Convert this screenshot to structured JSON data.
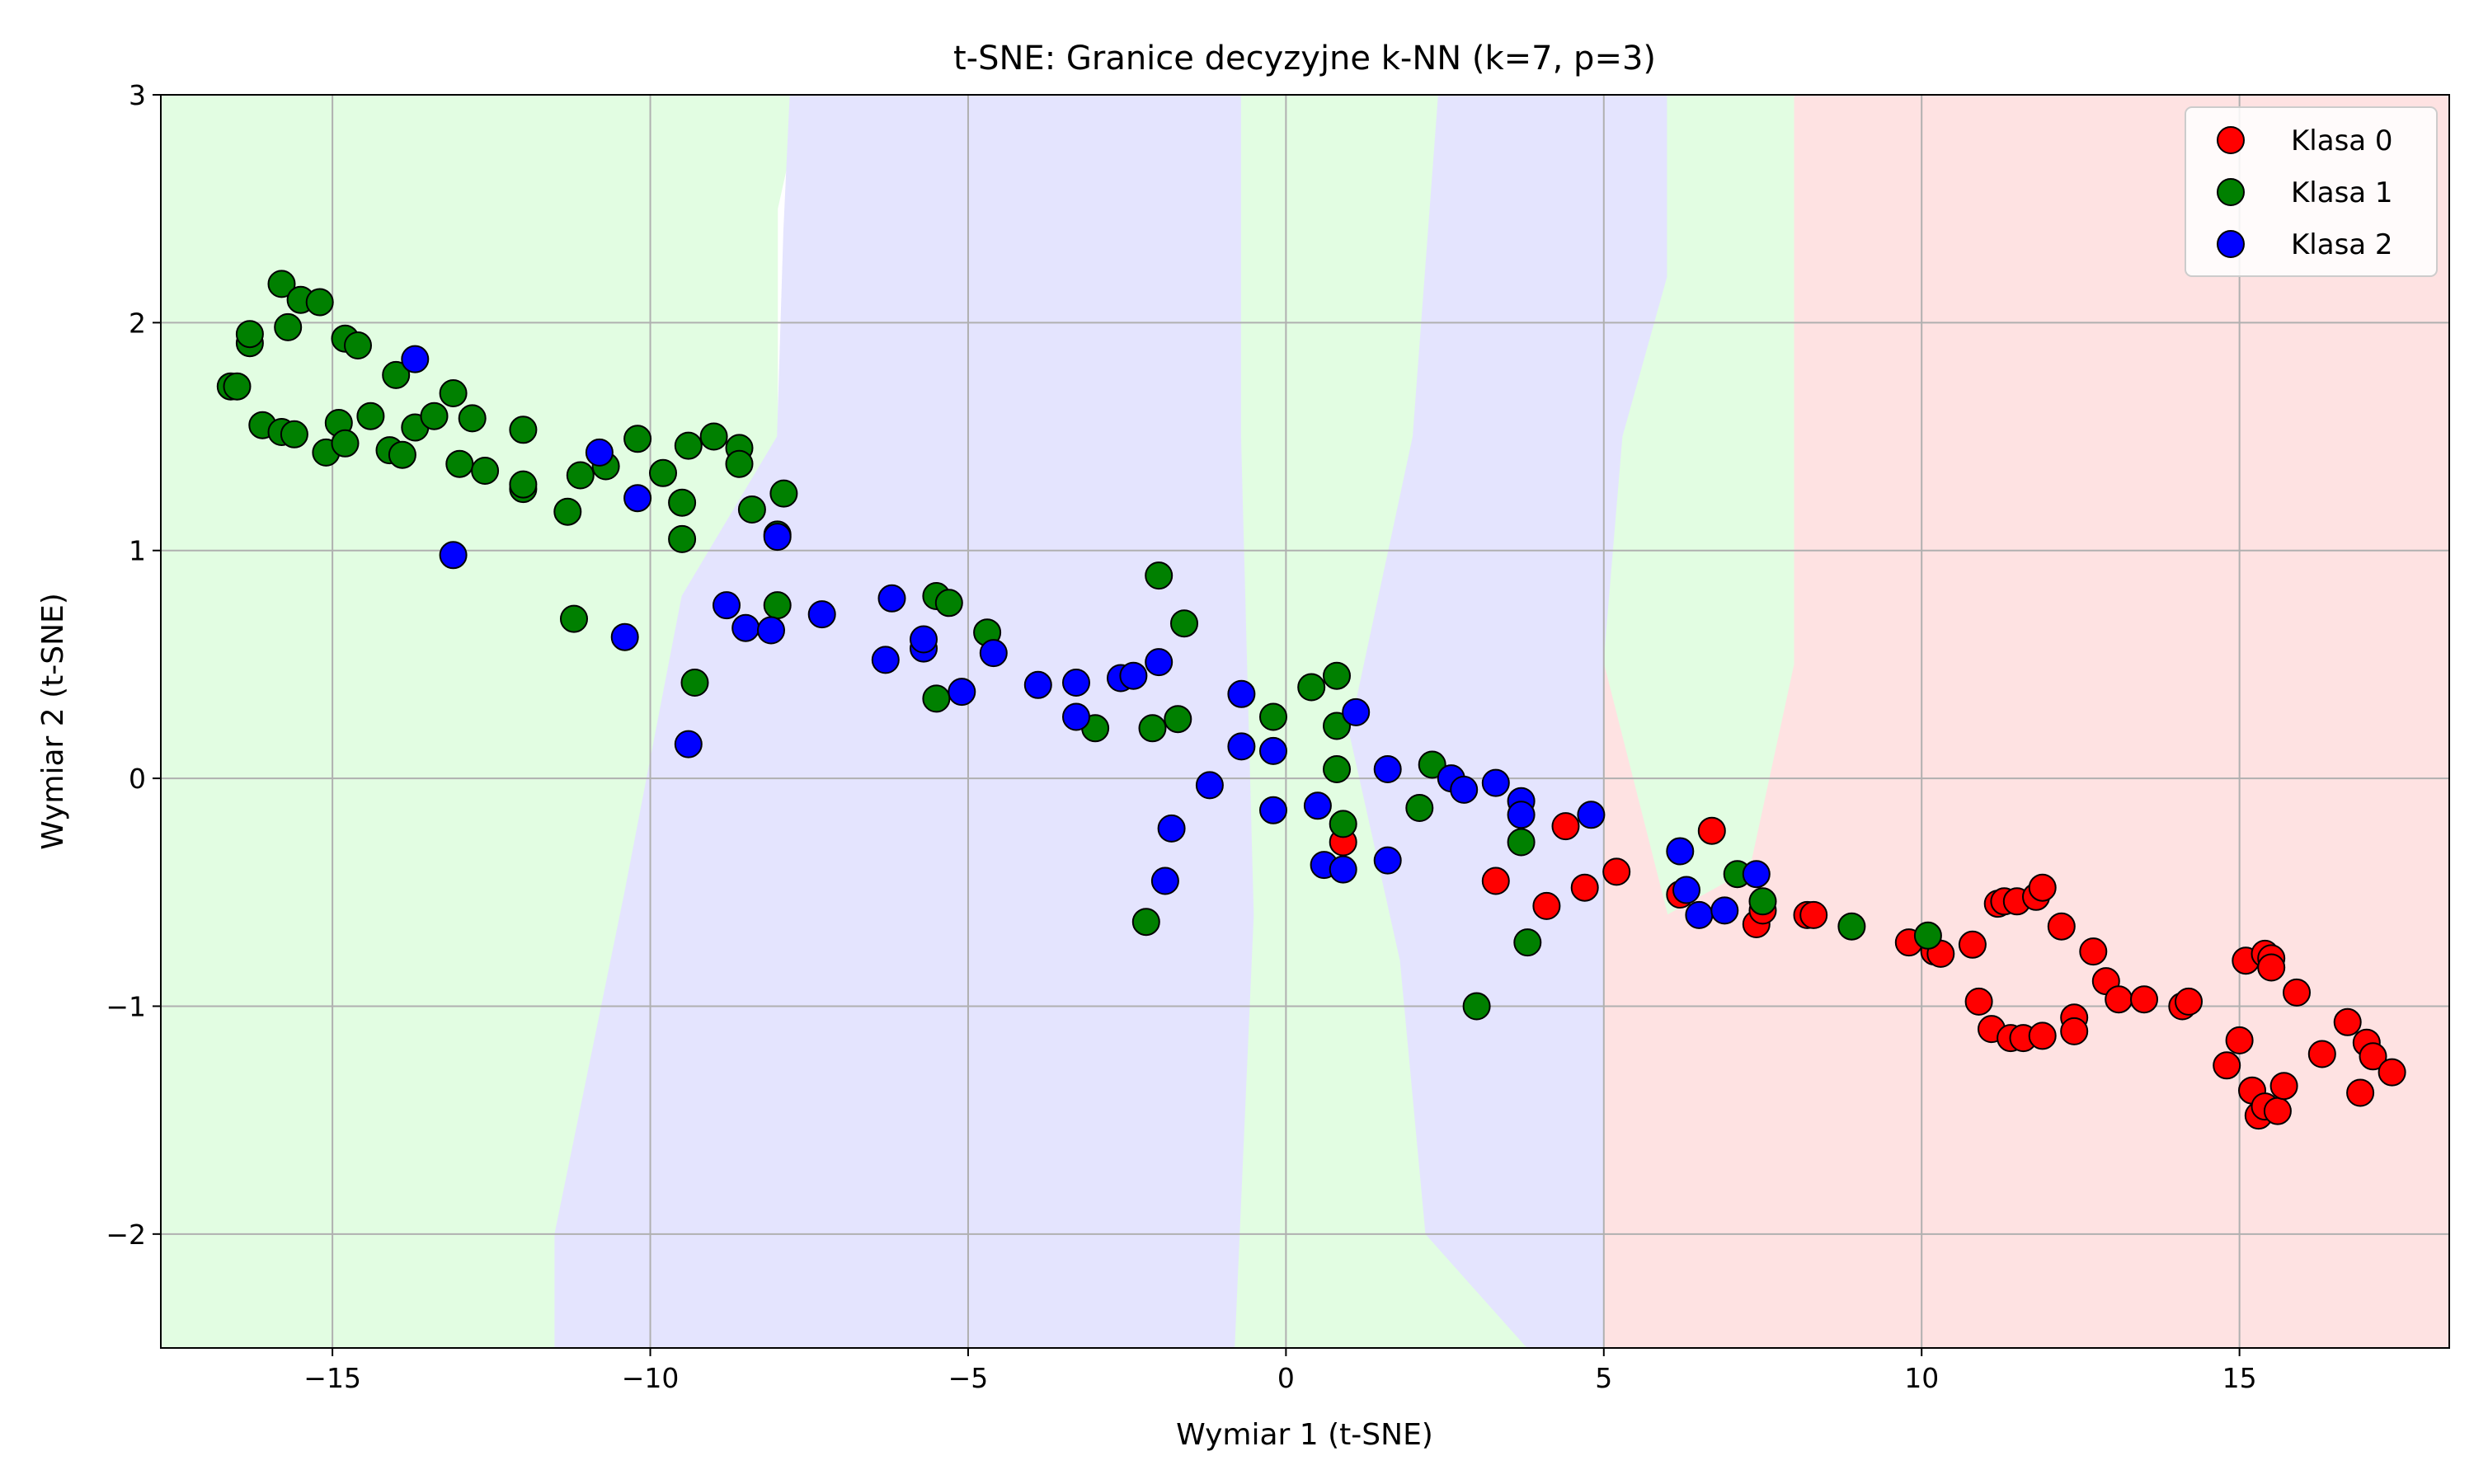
{
  "chart_data": {
    "type": "scatter",
    "title": "t-SNE: Granice decyzyjne k-NN (k=7, p=3)",
    "xlabel": "Wymiar 1 (t-SNE)",
    "ylabel": "Wymiar 2 (t-SNE)",
    "xlim": [
      -17.7,
      18.3
    ],
    "ylim": [
      -2.5,
      3.0
    ],
    "xticks": [
      -15,
      -10,
      -5,
      0,
      5,
      10,
      15
    ],
    "yticks": [
      -2,
      -1,
      0,
      1,
      2,
      3
    ],
    "xtick_labels": [
      "−15",
      "−10",
      "−5",
      "0",
      "5",
      "10",
      "15"
    ],
    "ytick_labels": [
      "−2",
      "−1",
      "0",
      "1",
      "2",
      "3"
    ],
    "grid": true,
    "legend_position": "top-right",
    "decision_regions": [
      {
        "class": "Klasa 1",
        "color": "#e2fde2",
        "polygon": [
          [
            -17.7,
            3.0
          ],
          [
            -7.6,
            3.0
          ],
          [
            -8.0,
            2.5
          ],
          [
            -8.0,
            1.5
          ],
          [
            -9.5,
            0.8
          ],
          [
            -10.4,
            -0.5
          ],
          [
            -11.5,
            -2.0
          ],
          [
            -11.5,
            -2.5
          ],
          [
            -17.7,
            -2.5
          ]
        ]
      },
      {
        "class": "Klasa 2",
        "color": "#e4e4fe",
        "polygon": [
          [
            -7.6,
            3.0
          ],
          [
            -7.6,
            3.0
          ],
          [
            -7.8,
            3.0
          ],
          [
            -7.9,
            2.4
          ],
          [
            -8.0,
            1.5
          ],
          [
            -9.5,
            0.8
          ],
          [
            -10.4,
            -0.5
          ],
          [
            -11.5,
            -2.0
          ],
          [
            -11.5,
            -2.5
          ],
          [
            -0.8,
            -2.5
          ],
          [
            -0.5,
            -0.6
          ],
          [
            -0.7,
            1.5
          ],
          [
            -0.7,
            3.0
          ]
        ]
      },
      {
        "class": "Klasa 1",
        "color": "#e2fde2",
        "polygon": [
          [
            -0.7,
            3.0
          ],
          [
            2.4,
            3.0
          ],
          [
            2.0,
            1.5
          ],
          [
            1.0,
            0.2
          ],
          [
            1.8,
            -0.8
          ],
          [
            2.2,
            -2.0
          ],
          [
            3.8,
            -2.5
          ],
          [
            -0.8,
            -2.5
          ],
          [
            -0.5,
            -0.6
          ],
          [
            -0.7,
            1.5
          ]
        ]
      },
      {
        "class": "Klasa 2",
        "color": "#e4e4fe",
        "polygon": [
          [
            2.4,
            3.0
          ],
          [
            6.0,
            3.0
          ],
          [
            6.0,
            2.2
          ],
          [
            5.3,
            1.5
          ],
          [
            5.0,
            0.5
          ],
          [
            5.0,
            -2.5
          ],
          [
            3.8,
            -2.5
          ],
          [
            2.2,
            -2.0
          ],
          [
            1.8,
            -0.8
          ],
          [
            1.0,
            0.2
          ],
          [
            2.0,
            1.5
          ]
        ]
      },
      {
        "class": "Klasa 1",
        "color": "#e2fde2",
        "polygon": [
          [
            6.0,
            3.0
          ],
          [
            8.0,
            3.0
          ],
          [
            8.0,
            0.5
          ],
          [
            7.3,
            -0.4
          ],
          [
            6.0,
            -0.6
          ],
          [
            5.0,
            0.5
          ],
          [
            5.3,
            1.5
          ],
          [
            6.0,
            2.2
          ]
        ]
      },
      {
        "class": "Klasa 0",
        "color": "#fee2e2",
        "polygon": [
          [
            8.0,
            3.0
          ],
          [
            18.3,
            3.0
          ],
          [
            18.3,
            -2.5
          ],
          [
            5.0,
            -2.5
          ],
          [
            5.0,
            0.5
          ],
          [
            6.0,
            -0.6
          ],
          [
            7.3,
            -0.4
          ],
          [
            8.0,
            0.5
          ]
        ]
      }
    ],
    "series": [
      {
        "name": "Klasa 0",
        "color": "#ff0000",
        "points": [
          [
            0.9,
            -0.28
          ],
          [
            3.3,
            -0.45
          ],
          [
            4.1,
            -0.56
          ],
          [
            4.4,
            -0.21
          ],
          [
            4.7,
            -0.48
          ],
          [
            5.2,
            -0.41
          ],
          [
            6.2,
            -0.51
          ],
          [
            6.7,
            -0.23
          ],
          [
            7.4,
            -0.64
          ],
          [
            7.5,
            -0.58
          ],
          [
            8.2,
            -0.6
          ],
          [
            8.3,
            -0.6
          ],
          [
            9.8,
            -0.72
          ],
          [
            10.2,
            -0.76
          ],
          [
            10.3,
            -0.77
          ],
          [
            10.8,
            -0.73
          ],
          [
            10.9,
            -0.98
          ],
          [
            11.1,
            -1.1
          ],
          [
            11.2,
            -0.55
          ],
          [
            11.3,
            -0.54
          ],
          [
            11.4,
            -1.14
          ],
          [
            11.5,
            -0.54
          ],
          [
            11.6,
            -1.14
          ],
          [
            11.8,
            -0.52
          ],
          [
            11.9,
            -0.48
          ],
          [
            11.9,
            -1.13
          ],
          [
            12.2,
            -0.65
          ],
          [
            12.4,
            -1.05
          ],
          [
            12.4,
            -1.11
          ],
          [
            12.7,
            -0.76
          ],
          [
            12.9,
            -0.89
          ],
          [
            13.1,
            -0.97
          ],
          [
            13.5,
            -0.97
          ],
          [
            14.1,
            -1.0
          ],
          [
            14.2,
            -0.98
          ],
          [
            14.8,
            -1.26
          ],
          [
            15.0,
            -1.15
          ],
          [
            15.1,
            -0.8
          ],
          [
            15.2,
            -1.37
          ],
          [
            15.3,
            -1.48
          ],
          [
            15.4,
            -0.77
          ],
          [
            15.4,
            -1.44
          ],
          [
            15.5,
            -0.79
          ],
          [
            15.5,
            -0.83
          ],
          [
            15.6,
            -1.46
          ],
          [
            15.7,
            -1.35
          ],
          [
            15.9,
            -0.94
          ],
          [
            16.3,
            -1.21
          ],
          [
            16.7,
            -1.07
          ],
          [
            16.9,
            -1.38
          ],
          [
            17.0,
            -1.16
          ],
          [
            17.1,
            -1.22
          ],
          [
            17.4,
            -1.29
          ]
        ]
      },
      {
        "name": "Klasa 1",
        "color": "#008000",
        "points": [
          [
            -16.6,
            1.72
          ],
          [
            -16.5,
            1.72
          ],
          [
            -16.3,
            1.91
          ],
          [
            -16.3,
            1.95
          ],
          [
            -16.1,
            1.55
          ],
          [
            -15.8,
            1.52
          ],
          [
            -15.8,
            2.17
          ],
          [
            -15.7,
            1.98
          ],
          [
            -15.6,
            1.51
          ],
          [
            -15.5,
            2.1
          ],
          [
            -15.2,
            2.09
          ],
          [
            -15.1,
            1.43
          ],
          [
            -14.9,
            1.56
          ],
          [
            -14.8,
            1.47
          ],
          [
            -14.8,
            1.93
          ],
          [
            -14.6,
            1.9
          ],
          [
            -14.4,
            1.59
          ],
          [
            -14.1,
            1.44
          ],
          [
            -14.0,
            1.77
          ],
          [
            -13.9,
            1.42
          ],
          [
            -13.7,
            1.54
          ],
          [
            -13.4,
            1.59
          ],
          [
            -13.1,
            1.69
          ],
          [
            -13.0,
            1.38
          ],
          [
            -12.8,
            1.58
          ],
          [
            -12.6,
            1.35
          ],
          [
            -12.0,
            1.27
          ],
          [
            -12.0,
            1.29
          ],
          [
            -12.0,
            1.53
          ],
          [
            -11.3,
            1.17
          ],
          [
            -11.2,
            0.7
          ],
          [
            -11.1,
            1.33
          ],
          [
            -10.7,
            1.37
          ],
          [
            -10.2,
            1.49
          ],
          [
            -9.8,
            1.34
          ],
          [
            -9.5,
            1.05
          ],
          [
            -9.5,
            1.21
          ],
          [
            -9.4,
            1.46
          ],
          [
            -9.3,
            0.42
          ],
          [
            -9.0,
            1.5
          ],
          [
            -8.6,
            1.45
          ],
          [
            -8.6,
            1.38
          ],
          [
            -8.4,
            1.18
          ],
          [
            -8.0,
            0.76
          ],
          [
            -8.0,
            1.07
          ],
          [
            -7.9,
            1.25
          ],
          [
            -5.5,
            0.35
          ],
          [
            -5.5,
            0.8
          ],
          [
            -5.3,
            0.77
          ],
          [
            -4.7,
            0.64
          ],
          [
            -3.0,
            0.22
          ],
          [
            -2.2,
            -0.63
          ],
          [
            -2.1,
            0.22
          ],
          [
            -2.0,
            0.89
          ],
          [
            -1.7,
            0.26
          ],
          [
            -1.6,
            0.68
          ],
          [
            -0.2,
            0.27
          ],
          [
            0.4,
            0.4
          ],
          [
            0.8,
            0.45
          ],
          [
            0.8,
            0.04
          ],
          [
            0.8,
            0.23
          ],
          [
            0.9,
            -0.2
          ],
          [
            2.1,
            -0.13
          ],
          [
            2.3,
            0.06
          ],
          [
            3.0,
            -1.0
          ],
          [
            3.7,
            -0.28
          ],
          [
            3.8,
            -0.72
          ],
          [
            7.1,
            -0.42
          ],
          [
            7.5,
            -0.54
          ],
          [
            8.9,
            -0.65
          ],
          [
            10.1,
            -0.69
          ]
        ]
      },
      {
        "name": "Klasa 2",
        "color": "#0000ff",
        "points": [
          [
            -13.7,
            1.84
          ],
          [
            -13.1,
            0.98
          ],
          [
            -10.8,
            1.43
          ],
          [
            -10.4,
            0.62
          ],
          [
            -10.2,
            1.23
          ],
          [
            -9.4,
            0.15
          ],
          [
            -8.8,
            0.76
          ],
          [
            -8.5,
            0.66
          ],
          [
            -8.1,
            0.65
          ],
          [
            -8.0,
            1.06
          ],
          [
            -7.3,
            0.72
          ],
          [
            -6.3,
            0.52
          ],
          [
            -6.2,
            0.79
          ],
          [
            -5.7,
            0.57
          ],
          [
            -5.7,
            0.61
          ],
          [
            -5.1,
            0.38
          ],
          [
            -4.6,
            0.55
          ],
          [
            -3.9,
            0.41
          ],
          [
            -3.3,
            0.27
          ],
          [
            -3.3,
            0.42
          ],
          [
            -2.6,
            0.44
          ],
          [
            -2.4,
            0.45
          ],
          [
            -2.0,
            0.51
          ],
          [
            -1.9,
            -0.45
          ],
          [
            -1.8,
            -0.22
          ],
          [
            -1.2,
            -0.03
          ],
          [
            -0.7,
            0.37
          ],
          [
            -0.7,
            0.14
          ],
          [
            -0.2,
            0.12
          ],
          [
            -0.2,
            -0.14
          ],
          [
            0.5,
            -0.12
          ],
          [
            0.6,
            -0.38
          ],
          [
            0.9,
            -0.4
          ],
          [
            1.1,
            0.29
          ],
          [
            1.6,
            0.04
          ],
          [
            1.6,
            -0.36
          ],
          [
            2.6,
            0.0
          ],
          [
            2.8,
            -0.05
          ],
          [
            3.3,
            -0.02
          ],
          [
            3.7,
            -0.1
          ],
          [
            3.7,
            -0.16
          ],
          [
            4.8,
            -0.16
          ],
          [
            6.2,
            -0.32
          ],
          [
            6.3,
            -0.49
          ],
          [
            6.5,
            -0.6
          ],
          [
            6.9,
            -0.58
          ],
          [
            7.4,
            -0.42
          ]
        ]
      }
    ]
  }
}
